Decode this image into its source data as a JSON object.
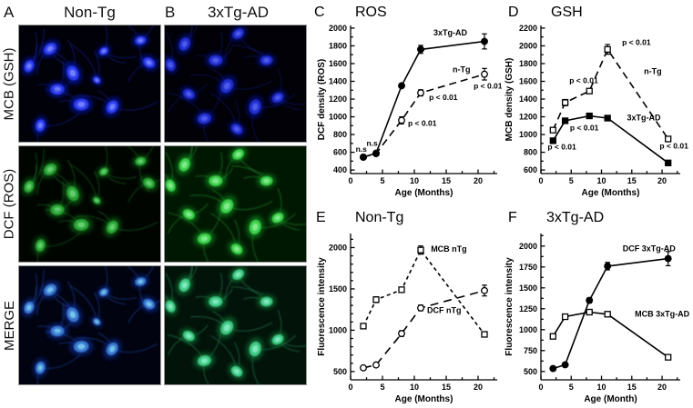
{
  "ink": "#000000",
  "panels": {
    "A": {
      "letter": "A",
      "title": "Non-Tg"
    },
    "B": {
      "letter": "B",
      "title": "3xTg-AD"
    }
  },
  "micro": {
    "rows": [
      {
        "label": "MCB (GSH)",
        "bg": {
          "A": "#010109",
          "B": "#010107"
        },
        "glow": {
          "A": "#0616c0",
          "B": "#040f8e"
        },
        "body": {
          "A": "#2e3df2",
          "B": "#222fd0"
        },
        "hi": {
          "A": "#7f8cff",
          "B": "#5663f0"
        },
        "neur": {
          "A": "#1b28b0",
          "B": "#131d85"
        }
      },
      {
        "label": "DCF (ROS)",
        "bg": {
          "A": "#000500",
          "B": "#001802"
        },
        "glow": {
          "A": "#0a6a14",
          "B": "#108a1e"
        },
        "body": {
          "A": "#2aa636",
          "B": "#3ed04b"
        },
        "hi": {
          "A": "#6fd57a",
          "B": "#8ef09a"
        },
        "neur": {
          "A": "#1d7c26",
          "B": "#2a9a34"
        }
      },
      {
        "label": "MERGE",
        "bg": {
          "A": "#010310",
          "B": "#021309"
        },
        "glow": {
          "A": "#0a2f9e",
          "B": "#0c7a35"
        },
        "body": {
          "A": "#3a7ad0",
          "B": "#3fc985"
        },
        "hi": {
          "A": "#7fd0f0",
          "B": "#8af0c8"
        },
        "neur": {
          "A": "#2050b5",
          "B": "#2d9460"
        }
      }
    ],
    "columns": [
      {
        "id": "A",
        "cells": [
          [
            0.22,
            0.2,
            1.0
          ],
          [
            0.07,
            0.35,
            0.9
          ],
          [
            0.38,
            0.41,
            1.1
          ],
          [
            0.27,
            0.55,
            1.0
          ],
          [
            0.44,
            0.68,
            1.1
          ],
          [
            0.66,
            0.7,
            1.0
          ],
          [
            0.92,
            0.32,
            0.9
          ],
          [
            0.86,
            0.13,
            0.8
          ],
          [
            0.15,
            0.86,
            0.9
          ],
          [
            0.6,
            0.22,
            0.7
          ],
          [
            0.55,
            0.47,
            0.6
          ]
        ]
      },
      {
        "id": "B",
        "cells": [
          [
            0.52,
            0.07,
            0.9
          ],
          [
            0.14,
            0.16,
            1.0
          ],
          [
            0.04,
            0.34,
            0.9
          ],
          [
            0.36,
            0.3,
            1.0
          ],
          [
            0.72,
            0.3,
            0.9
          ],
          [
            0.44,
            0.52,
            1.1
          ],
          [
            0.17,
            0.59,
            0.9
          ],
          [
            0.28,
            0.8,
            1.0
          ],
          [
            0.64,
            0.7,
            1.1
          ],
          [
            0.8,
            0.62,
            0.9
          ],
          [
            0.51,
            0.89,
            0.9
          ]
        ]
      }
    ]
  },
  "chart_data": [
    {
      "panel_label": "C",
      "title": "ROS",
      "type": "line",
      "xlabel": "Age (Months)",
      "ylabel": "DCF density (ROS)",
      "x": [
        2,
        4,
        8,
        11,
        21
      ],
      "xlim": [
        0,
        23
      ],
      "ylim": [
        360,
        2030
      ],
      "xticks": [
        0,
        5,
        10,
        15,
        20
      ],
      "xminor": [
        2.5,
        7.5,
        12.5,
        17.5,
        22.5
      ],
      "yticks": [
        400,
        600,
        800,
        1000,
        1200,
        1400,
        1600,
        1800,
        2000
      ],
      "yminor": [
        500,
        700,
        900,
        1100,
        1300,
        1500,
        1700,
        1900
      ],
      "plot": {
        "l": 40,
        "t": 28,
        "r": 201,
        "b": 191,
        "lx": 0,
        "tx": 45
      },
      "series": [
        {
          "name": "n-Tg",
          "marker": "circle",
          "open": true,
          "dash": "dash",
          "values": [
            545,
            585,
            960,
            1270,
            1480
          ],
          "err": [
            0,
            0,
            40,
            35,
            65
          ],
          "label": {
            "x": 16.0,
            "y": 1500,
            "anchor": "start"
          }
        },
        {
          "name": "3xTg-AD",
          "marker": "circle",
          "open": false,
          "dash": "solid",
          "values": [
            545,
            590,
            1350,
            1760,
            1850
          ],
          "err": [
            0,
            0,
            0,
            45,
            85
          ],
          "label": {
            "x": 13.0,
            "y": 1915,
            "anchor": "start"
          }
        }
      ],
      "annotations": [
        {
          "text": "n.s",
          "x": 0.8,
          "y": 605,
          "anchor": "start"
        },
        {
          "text": "n.s",
          "x": 2.5,
          "y": 675,
          "anchor": "start"
        },
        {
          "text": "p < 0.01",
          "x": 9.0,
          "y": 900,
          "anchor": "start"
        },
        {
          "text": "p < 0.01",
          "x": 12.3,
          "y": 1190,
          "anchor": "start"
        },
        {
          "text": "p < 0.01",
          "x": 19.3,
          "y": 1320,
          "anchor": "start"
        }
      ]
    },
    {
      "panel_label": "D",
      "title": "GSH",
      "type": "line",
      "xlabel": "Age (Months)",
      "ylabel": "MCB density (GSH)",
      "x": [
        2,
        4,
        8,
        11,
        21
      ],
      "xlim": [
        0,
        23
      ],
      "ylim": [
        560,
        2230
      ],
      "xticks": [
        0,
        5,
        10,
        15,
        20
      ],
      "xminor": [
        2.5,
        7.5,
        12.5,
        17.5,
        22.5
      ],
      "yticks": [
        600,
        800,
        1000,
        1200,
        1400,
        1600,
        1800,
        2000,
        2200
      ],
      "yminor": [
        700,
        900,
        1100,
        1300,
        1500,
        1700,
        1900,
        2100
      ],
      "plot": {
        "l": 43,
        "t": 28,
        "r": 196,
        "b": 191,
        "lx": 7,
        "tx": 54
      },
      "series": [
        {
          "name": "3xTg-AD",
          "marker": "square",
          "open": false,
          "dash": "solid",
          "values": [
            930,
            1155,
            1210,
            1185,
            680
          ],
          "err": [
            0,
            0,
            0,
            30,
            0
          ],
          "label": {
            "x": 14.2,
            "y": 1160,
            "anchor": "start"
          }
        },
        {
          "name": "n-Tg",
          "marker": "square",
          "open": true,
          "dash": "dash",
          "values": [
            1050,
            1360,
            1490,
            1960,
            950
          ],
          "err": [
            0,
            35,
            0,
            55,
            0
          ],
          "label": {
            "x": 17.0,
            "y": 1680,
            "anchor": "start"
          }
        }
      ],
      "annotations": [
        {
          "text": "p < 0.01",
          "x": 1.1,
          "y": 830,
          "anchor": "start"
        },
        {
          "text": "p < 0.01",
          "x": 4.8,
          "y": 1045,
          "anchor": "start"
        },
        {
          "text": "p < 0.01",
          "x": 4.7,
          "y": 1580,
          "anchor": "start"
        },
        {
          "text": "p < 0.01",
          "x": 13.4,
          "y": 2010,
          "anchor": "start"
        },
        {
          "text": "p < 0.01",
          "x": 19.6,
          "y": 840,
          "anchor": "start"
        }
      ]
    },
    {
      "panel_label": "E",
      "title": "Non-Tg",
      "type": "line",
      "xlabel": "Age (Months)",
      "ylabel": "Fluorescence intensity",
      "x": [
        2,
        4,
        8,
        11,
        21
      ],
      "xlim": [
        0,
        23
      ],
      "ylim": [
        400,
        2170
      ],
      "xticks": [
        0,
        5,
        10,
        15,
        20
      ],
      "xminor": [
        2.5,
        7.5,
        12.5,
        17.5,
        22.5
      ],
      "yticks": [
        500,
        1000,
        1500,
        2000
      ],
      "yminor": [
        600,
        700,
        800,
        900,
        1100,
        1200,
        1300,
        1400,
        1600,
        1700,
        1800,
        1900,
        2100
      ],
      "plot": {
        "l": 40,
        "t": 31,
        "r": 201,
        "b": 192,
        "lx": 2,
        "tx": 45
      },
      "series": [
        {
          "name": "MCB nTg",
          "marker": "square",
          "open": true,
          "dash": "shortdash",
          "values": [
            1050,
            1370,
            1490,
            1970,
            950
          ],
          "err": [
            0,
            35,
            0,
            50,
            0
          ],
          "label": {
            "x": 12.6,
            "y": 1950,
            "anchor": "start"
          }
        },
        {
          "name": "DCF nTg",
          "marker": "circle",
          "open": true,
          "dash": "longdash",
          "values": [
            545,
            580,
            960,
            1270,
            1480
          ],
          "err": [
            0,
            0,
            35,
            35,
            65
          ],
          "label": {
            "x": 12.0,
            "y": 1210,
            "anchor": "start"
          }
        }
      ],
      "annotations": []
    },
    {
      "panel_label": "F",
      "title": "3xTg-AD",
      "type": "line",
      "xlabel": "Age (Month)",
      "ylabel": "Fluorescence intensity",
      "x": [
        2,
        4,
        8,
        11,
        21
      ],
      "xlim": [
        0,
        23
      ],
      "ylim": [
        400,
        2150
      ],
      "xticks": [
        0,
        5,
        10,
        15,
        20
      ],
      "xminor": [
        2.5,
        7.5,
        12.5,
        17.5,
        22.5
      ],
      "yticks": [
        500,
        750,
        1000,
        1250,
        1500,
        1750,
        2000
      ],
      "yminor": [
        625,
        875,
        1125,
        1375,
        1625,
        1875,
        2125
      ],
      "plot": {
        "l": 43,
        "t": 31,
        "r": 196,
        "b": 192,
        "lx": 7,
        "tx": 49
      },
      "series": [
        {
          "name": "MCB 3xTg-AD",
          "marker": "square",
          "open": true,
          "dash": "solid",
          "values": [
            920,
            1155,
            1210,
            1185,
            670
          ],
          "err": [
            0,
            25,
            0,
            30,
            0
          ],
          "label": {
            "x": 15.5,
            "y": 1155,
            "anchor": "start"
          }
        },
        {
          "name": "DCF 3xTg-AD",
          "marker": "circle",
          "open": false,
          "dash": "solid",
          "values": [
            535,
            580,
            1350,
            1760,
            1850
          ],
          "err": [
            0,
            0,
            30,
            45,
            85
          ],
          "label": {
            "x": 13.5,
            "y": 1940,
            "anchor": "start"
          }
        }
      ],
      "annotations": []
    }
  ]
}
